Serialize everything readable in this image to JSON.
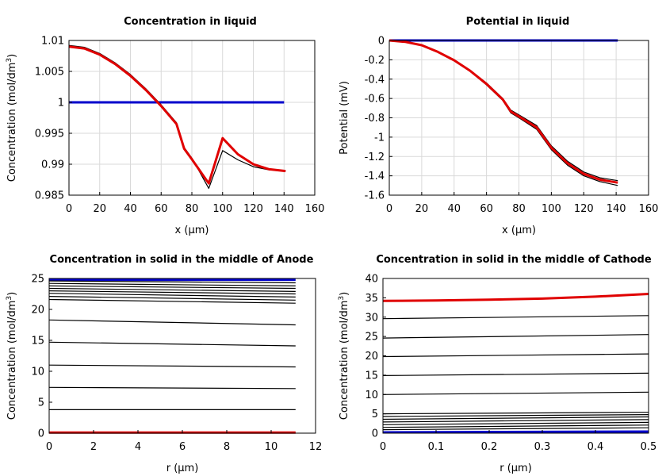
{
  "chart_data": [
    {
      "type": "line",
      "title": "Concentration in liquid",
      "xlabel": "x (µm)",
      "ylabel": "Concentration (mol/dm³)",
      "xlim": [
        0,
        160
      ],
      "ylim": [
        0.985,
        1.01
      ],
      "xticks": [
        "0",
        "20",
        "40",
        "60",
        "80",
        "100",
        "120",
        "140",
        "160"
      ],
      "yticks": [
        "1.01",
        "1.005",
        "1",
        "0.995",
        "0.99",
        "0.985"
      ],
      "grid": true,
      "series": [
        {
          "color": "#0000cc",
          "x": [
            0,
            140
          ],
          "y": [
            1.0,
            1.0
          ]
        },
        {
          "color": "#000000",
          "x": [
            0,
            10,
            20,
            30,
            40,
            50,
            60,
            70,
            75,
            80,
            91,
            100,
            110,
            120,
            130,
            141
          ],
          "y": [
            1.0092,
            1.0089,
            1.0079,
            1.0064,
            1.0045,
            1.0022,
            0.9996,
            0.9967,
            0.9927,
            0.991,
            0.9861,
            0.9922,
            0.9907,
            0.9896,
            0.9891,
            0.9889
          ]
        },
        {
          "color": "#e00000",
          "x": [
            0,
            10,
            20,
            30,
            40,
            50,
            60,
            70,
            75,
            80,
            91,
            100,
            110,
            120,
            130,
            141
          ],
          "y": [
            1.009,
            1.0087,
            1.0077,
            1.0062,
            1.0043,
            1.002,
            0.9994,
            0.9965,
            0.9925,
            0.9908,
            0.9869,
            0.9942,
            0.9916,
            0.99,
            0.9892,
            0.9889
          ]
        }
      ]
    },
    {
      "type": "line",
      "title": "Potential in liquid",
      "xlabel": "x (µm)",
      "ylabel": "Potential (mV)",
      "xlim": [
        0,
        160
      ],
      "ylim": [
        -1.6,
        0
      ],
      "xticks": [
        "0",
        "20",
        "40",
        "60",
        "80",
        "100",
        "120",
        "140",
        "160"
      ],
      "yticks": [
        "0",
        "-0.2",
        "-0.4",
        "-0.6",
        "-0.8",
        "-1",
        "-1.2",
        "-1.4",
        "-1.6"
      ],
      "grid": true,
      "series": [
        {
          "color": "#0000cc",
          "x": [
            0,
            141
          ],
          "y": [
            0,
            0
          ]
        },
        {
          "color": "#000000",
          "x": [
            0,
            10,
            20,
            30,
            40,
            50,
            60,
            70,
            75,
            80,
            91,
            100,
            110,
            120,
            130,
            141
          ],
          "y": [
            0,
            -0.015,
            -0.05,
            -0.12,
            -0.21,
            -0.32,
            -0.46,
            -0.62,
            -0.75,
            -0.8,
            -0.92,
            -1.13,
            -1.29,
            -1.4,
            -1.46,
            -1.5
          ]
        },
        {
          "color": "#000000",
          "x": [
            0,
            10,
            20,
            30,
            40,
            50,
            60,
            70,
            75,
            80,
            91,
            100,
            110,
            120,
            130,
            141
          ],
          "y": [
            0,
            -0.014,
            -0.048,
            -0.115,
            -0.2,
            -0.31,
            -0.44,
            -0.6,
            -0.72,
            -0.77,
            -0.88,
            -1.09,
            -1.25,
            -1.36,
            -1.42,
            -1.45
          ]
        },
        {
          "color": "#e00000",
          "x": [
            0,
            10,
            20,
            30,
            40,
            50,
            60,
            70,
            75,
            80,
            91,
            100,
            110,
            120,
            130,
            141
          ],
          "y": [
            0,
            -0.015,
            -0.049,
            -0.118,
            -0.205,
            -0.315,
            -0.45,
            -0.61,
            -0.735,
            -0.785,
            -0.9,
            -1.11,
            -1.27,
            -1.38,
            -1.44,
            -1.47
          ]
        }
      ]
    },
    {
      "type": "line",
      "title": "Concentration in solid in the middle of Anode",
      "xlabel": "r (µm)",
      "ylabel": "Concentration (mol/dm³)",
      "xlim": [
        0,
        12
      ],
      "ylim": [
        0,
        25
      ],
      "xticks": [
        "0",
        "2",
        "4",
        "6",
        "8",
        "10",
        "12"
      ],
      "yticks": [
        "25",
        "20",
        "15",
        "10",
        "5",
        "0"
      ],
      "grid": false,
      "series": [
        {
          "color": "#0000cc",
          "x": [
            0,
            11.1
          ],
          "y": [
            24.8,
            24.8
          ]
        },
        {
          "color": "#000000",
          "x": [
            0,
            11.1
          ],
          "y": [
            24.6,
            24.3
          ]
        },
        {
          "color": "#000000",
          "x": [
            0,
            11.1
          ],
          "y": [
            24.2,
            23.8
          ]
        },
        {
          "color": "#000000",
          "x": [
            0,
            11.1
          ],
          "y": [
            23.8,
            23.4
          ]
        },
        {
          "color": "#000000",
          "x": [
            0,
            11.1
          ],
          "y": [
            23.4,
            22.9
          ]
        },
        {
          "color": "#000000",
          "x": [
            0,
            11.1
          ],
          "y": [
            23.0,
            22.5
          ]
        },
        {
          "color": "#000000",
          "x": [
            0,
            11.1
          ],
          "y": [
            22.6,
            22.0
          ]
        },
        {
          "color": "#000000",
          "x": [
            0,
            11.1
          ],
          "y": [
            22.1,
            21.5
          ]
        },
        {
          "color": "#000000",
          "x": [
            0,
            11.1
          ],
          "y": [
            21.6,
            21.0
          ]
        },
        {
          "color": "#000000",
          "x": [
            0,
            11.1
          ],
          "y": [
            18.3,
            17.5
          ]
        },
        {
          "color": "#000000",
          "x": [
            0,
            11.1
          ],
          "y": [
            14.7,
            14.1
          ]
        },
        {
          "color": "#000000",
          "x": [
            0,
            11.1
          ],
          "y": [
            11.0,
            10.7
          ]
        },
        {
          "color": "#000000",
          "x": [
            0,
            11.1
          ],
          "y": [
            7.4,
            7.2
          ]
        },
        {
          "color": "#000000",
          "x": [
            0,
            11.1
          ],
          "y": [
            3.8,
            3.8
          ]
        },
        {
          "color": "#e00000",
          "x": [
            0,
            11.1
          ],
          "y": [
            0.1,
            0.1
          ]
        }
      ]
    },
    {
      "type": "line",
      "title": "Concentration in solid in the middle of Cathode",
      "xlabel": "r (µm)",
      "ylabel": "Concentration (mol/dm³)",
      "xlim": [
        0,
        0.5
      ],
      "ylim": [
        0,
        40
      ],
      "xticks": [
        "0",
        "0.1",
        "0.2",
        "0.3",
        "0.4",
        "0.5"
      ],
      "yticks": [
        "40",
        "35",
        "30",
        "25",
        "20",
        "15",
        "10",
        "5",
        "0"
      ],
      "grid": false,
      "series": [
        {
          "color": "#e00000",
          "x": [
            0,
            0.1,
            0.2,
            0.3,
            0.4,
            0.5
          ],
          "y": [
            34.2,
            34.3,
            34.5,
            34.8,
            35.3,
            36.0
          ]
        },
        {
          "color": "#000000",
          "x": [
            0,
            0.5
          ],
          "y": [
            29.6,
            30.4
          ]
        },
        {
          "color": "#000000",
          "x": [
            0,
            0.5
          ],
          "y": [
            24.6,
            25.5
          ]
        },
        {
          "color": "#000000",
          "x": [
            0,
            0.5
          ],
          "y": [
            19.8,
            20.5
          ]
        },
        {
          "color": "#000000",
          "x": [
            0,
            0.5
          ],
          "y": [
            14.9,
            15.5
          ]
        },
        {
          "color": "#000000",
          "x": [
            0,
            0.5
          ],
          "y": [
            10.0,
            10.6
          ]
        },
        {
          "color": "#000000",
          "x": [
            0,
            0.5
          ],
          "y": [
            5.0,
            5.4
          ]
        },
        {
          "color": "#000000",
          "x": [
            0,
            0.5
          ],
          "y": [
            4.3,
            4.8
          ]
        },
        {
          "color": "#000000",
          "x": [
            0,
            0.5
          ],
          "y": [
            3.6,
            4.2
          ]
        },
        {
          "color": "#000000",
          "x": [
            0,
            0.5
          ],
          "y": [
            2.9,
            3.5
          ]
        },
        {
          "color": "#000000",
          "x": [
            0,
            0.5
          ],
          "y": [
            2.2,
            2.8
          ]
        },
        {
          "color": "#000000",
          "x": [
            0,
            0.5
          ],
          "y": [
            1.5,
            2.1
          ]
        },
        {
          "color": "#000000",
          "x": [
            0,
            0.5
          ],
          "y": [
            0.9,
            1.4
          ]
        },
        {
          "color": "#0000cc",
          "x": [
            0,
            0.5
          ],
          "y": [
            0.2,
            0.4
          ]
        }
      ]
    }
  ]
}
